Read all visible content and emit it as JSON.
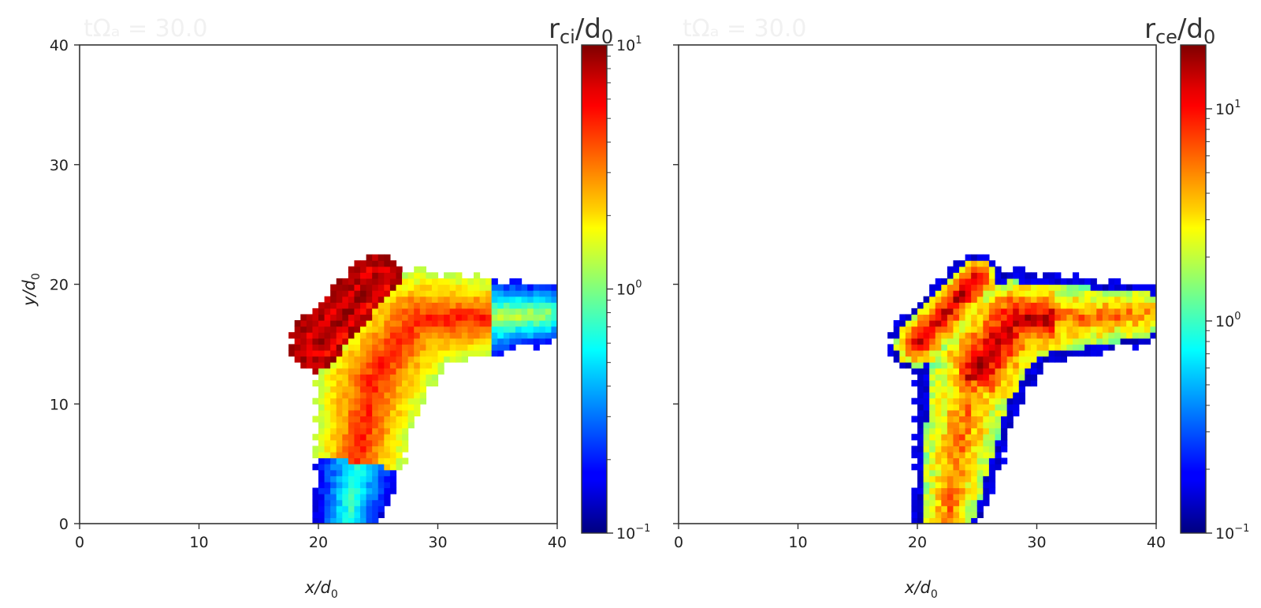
{
  "chart_data": [
    {
      "type": "heatmap",
      "title": "tΩₐ = 30.0",
      "xlabel": "x/d",
      "xlabel_sub": "0",
      "ylabel": "y/d",
      "ylabel_sub": "0",
      "xlim": [
        0,
        40
      ],
      "ylim": [
        0,
        40
      ],
      "xticks": [
        "0",
        "10",
        "20",
        "30",
        "40"
      ],
      "yticks": [
        "0",
        "10",
        "20",
        "30",
        "40"
      ],
      "colorbar": {
        "label_main": "r",
        "label_sub": "ci",
        "label_tail": "/d",
        "label_tail_sub": "0",
        "scale": "log",
        "colormap": "jet",
        "range": [
          0.1,
          10
        ],
        "ticks": [
          {
            "base": "10",
            "exp": "1",
            "value": 10
          },
          {
            "base": "10",
            "exp": "0",
            "value": 1
          },
          {
            "base": "10",
            "exp": "−1",
            "value": 0.1
          }
        ]
      },
      "field": "ion"
    },
    {
      "type": "heatmap",
      "title": "tΩₐ = 30.0",
      "xlabel": "x/d",
      "xlabel_sub": "0",
      "ylabel": "",
      "xlim": [
        0,
        40
      ],
      "ylim": [
        0,
        40
      ],
      "xticks": [
        "0",
        "10",
        "20",
        "30",
        "40"
      ],
      "yticks": [],
      "colorbar": {
        "label_main": "r",
        "label_sub": "ce",
        "label_tail": "/d",
        "label_tail_sub": "0",
        "scale": "log",
        "colormap": "jet",
        "range": [
          0.1,
          20
        ],
        "ticks": [
          {
            "base": "10",
            "exp": "1",
            "value": 10
          },
          {
            "base": "10",
            "exp": "0",
            "value": 1
          },
          {
            "base": "10",
            "exp": "−1",
            "value": 0.1
          }
        ]
      },
      "field": "electron"
    }
  ]
}
